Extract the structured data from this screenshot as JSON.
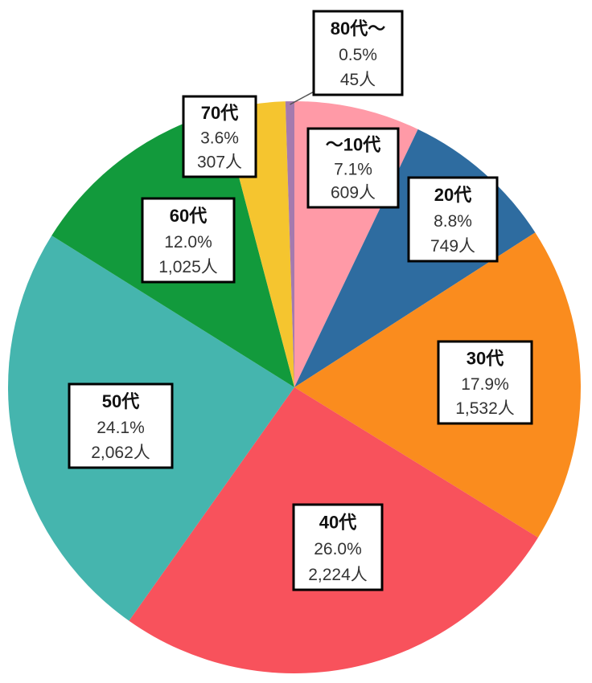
{
  "chart_data": {
    "type": "pie",
    "start_angle_deg": 0,
    "direction": "clockwise",
    "slices": [
      {
        "label": "〜10代",
        "percent": 7.1,
        "percent_label": "7.1%",
        "count": 609,
        "count_label": "609人",
        "color": "#FF9AA7"
      },
      {
        "label": "20代",
        "percent": 8.8,
        "percent_label": "8.8%",
        "count": 749,
        "count_label": "749人",
        "color": "#2E6CA0"
      },
      {
        "label": "30代",
        "percent": 17.9,
        "percent_label": "17.9%",
        "count": 1532,
        "count_label": "1,532人",
        "color": "#FA8C1E"
      },
      {
        "label": "40代",
        "percent": 26.0,
        "percent_label": "26.0%",
        "count": 2224,
        "count_label": "2,224人",
        "color": "#F8525C"
      },
      {
        "label": "50代",
        "percent": 24.1,
        "percent_label": "24.1%",
        "count": 2062,
        "count_label": "2,062人",
        "color": "#45B5AE"
      },
      {
        "label": "60代",
        "percent": 12.0,
        "percent_label": "12.0%",
        "count": 1025,
        "count_label": "1,025人",
        "color": "#129A3C"
      },
      {
        "label": "70代",
        "percent": 3.6,
        "percent_label": "3.6%",
        "count": 307,
        "count_label": "307人",
        "color": "#F5C52F"
      },
      {
        "label": "80代〜",
        "percent": 0.5,
        "percent_label": "0.5%",
        "count": 45,
        "count_label": "45人",
        "color": "#A57AAE"
      }
    ]
  }
}
